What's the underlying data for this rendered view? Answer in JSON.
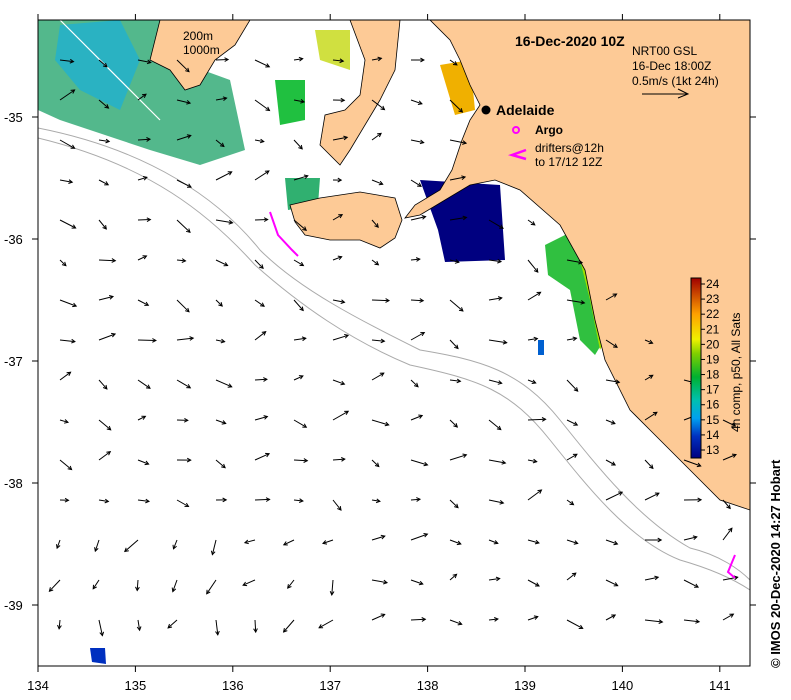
{
  "map": {
    "title": "16-Dec-2020 10Z",
    "model_label": "NRT00 GSL",
    "model_time": "16-Dec 18:00Z",
    "scale_label": "0.5m/s (1kt 24h)",
    "city": "Adelaide",
    "argo_label": "Argo",
    "drifters_line1": "drifters@12h",
    "drifters_line2": "to 17/12 12Z",
    "depth_200": "200m",
    "depth_1000": "1000m",
    "credit": "© IMOS 20-Dec-2020 14:27 Hobart",
    "x_ticks": [
      "134",
      "135",
      "136",
      "137",
      "138",
      "139",
      "140",
      "141"
    ],
    "y_ticks": [
      "-35",
      "-36",
      "-37",
      "-38",
      "-39"
    ],
    "colorbar": {
      "label": "4h comp, p50, All Sats",
      "ticks": [
        "13",
        "14",
        "15",
        "16",
        "17",
        "18",
        "19",
        "20",
        "21",
        "22",
        "23",
        "24"
      ],
      "range": [
        13,
        24
      ]
    },
    "colors": {
      "land": "#fdca96",
      "argo": "#ff00ff",
      "sst_low": "#000080",
      "sst_high": "#a00000"
    }
  }
}
